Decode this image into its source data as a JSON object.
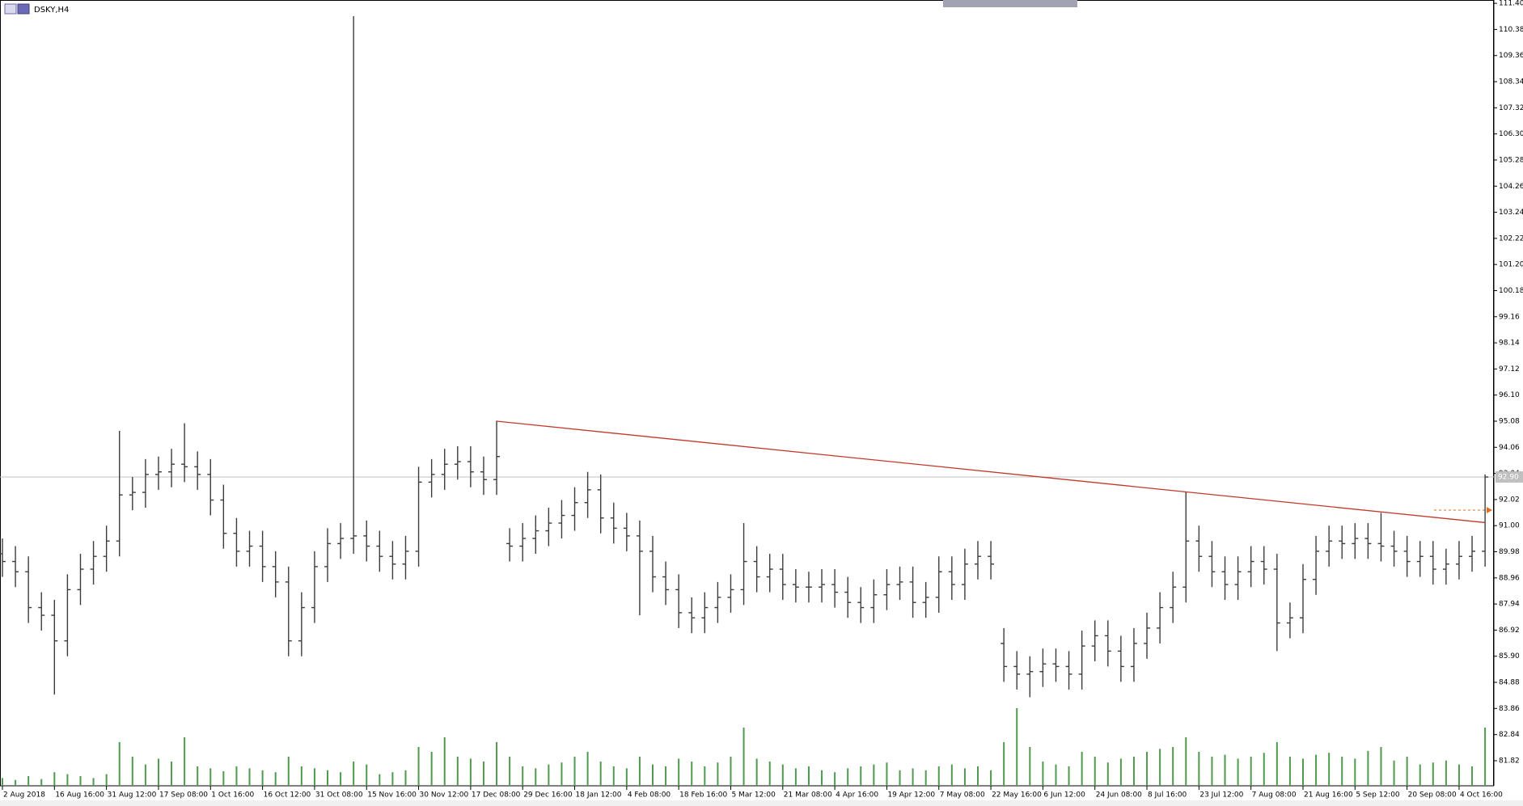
{
  "chart_data": {
    "type": "ohlc",
    "title": "DSKY,H4",
    "color": "#3c3c3c",
    "categories": [
      "2 Aug 2018",
      null,
      null,
      null,
      "16 Aug 16:00",
      null,
      null,
      null,
      "31 Aug 12:00",
      null,
      null,
      null,
      "17 Sep 08:00",
      null,
      null,
      null,
      "1 Oct 16:00",
      null,
      null,
      null,
      "16 Oct 12:00",
      null,
      null,
      null,
      "31 Oct 08:00",
      null,
      null,
      null,
      "15 Nov 16:00",
      null,
      null,
      null,
      "30 Nov 12:00",
      null,
      null,
      null,
      "17 Dec 08:00",
      null,
      null,
      null,
      "29 Dec 16:00",
      null,
      null,
      null,
      "18 Jan 12:00",
      null,
      null,
      null,
      "4 Feb 08:00",
      null,
      null,
      null,
      "18 Feb 16:00",
      null,
      null,
      null,
      "5 Mar 12:00",
      null,
      null,
      null,
      "21 Mar 08:00",
      null,
      null,
      null,
      "4 Apr 16:00",
      null,
      null,
      null,
      "19 Apr 12:00",
      null,
      null,
      null,
      "7 May 08:00",
      null,
      null,
      null,
      "22 May 16:00",
      null,
      null,
      null,
      "6 Jun 12:00",
      null,
      null,
      null,
      "24 Jun 08:00",
      null,
      null,
      null,
      "8 Jul 16:00",
      null,
      null,
      null,
      "23 Jul 12:00",
      null,
      null,
      null,
      "7 Aug 08:00",
      null,
      null,
      null,
      "21 Aug 16:00",
      null,
      null,
      null,
      "5 Sep 12:00",
      null,
      null,
      null,
      "20 Sep 08:00",
      null,
      null,
      null,
      "4 Oct 16:00",
      null,
      null
    ],
    "open": [
      89.9,
      89.6,
      89.2,
      87.8,
      87.5,
      86.5,
      88.5,
      89.3,
      89.8,
      90.4,
      92.2,
      92.3,
      93.0,
      93.1,
      93.4,
      93.3,
      93.0,
      92.0,
      90.7,
      90.0,
      90.2,
      89.4,
      88.8,
      86.5,
      87.8,
      89.4,
      90.3,
      90.5,
      90.6,
      90.2,
      89.8,
      89.5,
      90.0,
      92.7,
      93.0,
      93.4,
      93.5,
      93.1,
      92.8,
      90.3,
      90.2,
      90.5,
      90.8,
      91.1,
      91.4,
      91.9,
      92.4,
      91.3,
      90.9,
      90.6,
      90.0,
      89.0,
      88.5,
      87.6,
      87.4,
      87.8,
      88.2,
      88.5,
      89.6,
      89.0,
      89.3,
      88.7,
      88.6,
      88.6,
      88.7,
      88.4,
      88.0,
      87.8,
      88.3,
      88.7,
      88.8,
      88.0,
      88.2,
      89.2,
      88.7,
      89.5,
      89.8,
      86.4,
      85.5,
      85.2,
      85.3,
      85.6,
      85.5,
      85.2,
      86.3,
      86.7,
      86.1,
      85.5,
      86.4,
      87.0,
      87.8,
      88.6,
      90.4,
      89.8,
      89.2,
      88.7,
      89.2,
      89.6,
      89.3,
      87.2,
      87.4,
      88.9,
      90.0,
      90.4,
      90.3,
      90.5,
      90.3,
      90.2,
      90.0,
      89.6,
      89.8,
      89.3,
      89.5,
      89.8,
      90.0
    ],
    "high": [
      90.5,
      90.2,
      89.8,
      88.4,
      88.1,
      89.1,
      89.9,
      90.4,
      91.0,
      94.7,
      92.9,
      93.6,
      93.7,
      94.0,
      95.0,
      93.9,
      93.6,
      92.6,
      91.3,
      90.8,
      90.8,
      90.0,
      89.4,
      88.4,
      90.0,
      90.9,
      91.1,
      110.9,
      91.2,
      90.8,
      90.4,
      90.6,
      93.3,
      93.6,
      94.0,
      94.1,
      94.1,
      93.7,
      95.1,
      90.9,
      91.1,
      91.4,
      91.7,
      92.0,
      92.5,
      93.1,
      93.0,
      91.9,
      91.5,
      91.2,
      90.6,
      89.6,
      89.1,
      88.2,
      88.4,
      88.8,
      89.1,
      91.1,
      90.2,
      89.9,
      89.9,
      89.3,
      89.2,
      89.3,
      89.3,
      89.0,
      88.6,
      88.9,
      89.3,
      89.4,
      89.4,
      88.8,
      89.8,
      89.8,
      90.1,
      90.4,
      90.4,
      87.0,
      86.1,
      85.9,
      86.2,
      86.2,
      86.1,
      86.9,
      87.3,
      87.3,
      86.7,
      87.0,
      87.6,
      88.4,
      89.2,
      92.3,
      91.0,
      90.4,
      89.8,
      89.8,
      90.2,
      90.2,
      89.9,
      88.0,
      89.5,
      90.6,
      91.0,
      91.0,
      91.1,
      91.1,
      91.5,
      90.8,
      90.6,
      90.4,
      90.4,
      90.1,
      90.4,
      90.6,
      93.0
    ],
    "low": [
      89.0,
      88.6,
      87.2,
      86.9,
      84.4,
      85.9,
      87.9,
      88.7,
      89.2,
      89.8,
      91.6,
      91.7,
      92.4,
      92.5,
      92.7,
      92.4,
      91.4,
      90.1,
      89.4,
      89.4,
      88.8,
      88.2,
      85.9,
      85.9,
      87.2,
      88.8,
      89.7,
      89.9,
      89.6,
      89.2,
      88.9,
      88.9,
      89.4,
      92.1,
      92.4,
      92.8,
      92.5,
      92.2,
      92.2,
      89.6,
      89.6,
      89.9,
      90.2,
      90.5,
      90.8,
      91.3,
      90.7,
      90.3,
      90.0,
      87.5,
      88.4,
      87.9,
      87.0,
      86.8,
      86.8,
      87.2,
      87.6,
      87.9,
      88.4,
      88.4,
      88.1,
      88.0,
      88.0,
      88.0,
      87.8,
      87.4,
      87.2,
      87.2,
      87.7,
      88.1,
      87.4,
      87.4,
      87.6,
      88.1,
      88.1,
      88.9,
      88.9,
      84.9,
      84.6,
      84.3,
      84.7,
      84.9,
      84.6,
      84.6,
      85.7,
      85.5,
      84.9,
      84.9,
      85.8,
      86.4,
      87.2,
      88.0,
      89.2,
      88.6,
      88.1,
      88.1,
      88.6,
      88.7,
      86.1,
      86.6,
      86.8,
      88.3,
      89.4,
      89.7,
      89.7,
      89.7,
      89.6,
      89.4,
      89.0,
      89.0,
      88.7,
      88.7,
      88.9,
      89.2,
      89.4
    ],
    "close": [
      89.6,
      89.2,
      87.8,
      87.5,
      86.5,
      88.5,
      89.3,
      89.8,
      90.4,
      92.2,
      92.3,
      93.0,
      93.1,
      93.4,
      93.3,
      93.0,
      92.0,
      90.7,
      90.0,
      90.2,
      89.4,
      88.8,
      86.5,
      87.8,
      89.4,
      90.3,
      90.5,
      90.6,
      90.2,
      89.8,
      89.5,
      90.0,
      92.7,
      93.0,
      93.4,
      93.5,
      93.1,
      92.8,
      93.7,
      90.2,
      90.5,
      90.8,
      91.1,
      91.4,
      91.9,
      92.4,
      91.3,
      90.9,
      90.6,
      90.0,
      89.0,
      88.5,
      87.6,
      87.4,
      87.8,
      88.2,
      88.5,
      89.6,
      89.0,
      89.3,
      88.7,
      88.6,
      88.6,
      88.7,
      88.4,
      88.0,
      87.8,
      88.3,
      88.7,
      88.8,
      88.0,
      88.2,
      89.2,
      88.7,
      89.5,
      89.8,
      89.5,
      85.5,
      85.2,
      85.3,
      85.6,
      85.5,
      85.2,
      86.3,
      86.7,
      86.1,
      85.5,
      86.4,
      87.0,
      87.8,
      88.6,
      90.4,
      89.8,
      89.2,
      88.7,
      89.2,
      89.6,
      89.3,
      87.2,
      87.4,
      88.9,
      90.0,
      90.4,
      90.3,
      90.5,
      90.3,
      90.2,
      90.0,
      89.6,
      89.8,
      89.3,
      89.5,
      89.8,
      90.0,
      92.9
    ],
    "volume": {
      "color": "#4f9a4f",
      "values": [
        8,
        6,
        10,
        7,
        14,
        12,
        10,
        8,
        12,
        45,
        30,
        22,
        28,
        25,
        50,
        20,
        18,
        15,
        20,
        18,
        16,
        14,
        30,
        20,
        18,
        16,
        14,
        25,
        22,
        12,
        14,
        16,
        40,
        35,
        50,
        30,
        28,
        25,
        45,
        30,
        20,
        18,
        22,
        24,
        30,
        35,
        25,
        20,
        18,
        30,
        22,
        20,
        28,
        25,
        20,
        24,
        30,
        60,
        28,
        25,
        22,
        18,
        20,
        16,
        14,
        18,
        20,
        22,
        24,
        16,
        18,
        16,
        20,
        22,
        18,
        20,
        16,
        45,
        80,
        40,
        25,
        22,
        20,
        35,
        30,
        24,
        28,
        30,
        35,
        38,
        40,
        50,
        35,
        30,
        32,
        28,
        30,
        34,
        45,
        30,
        28,
        32,
        34,
        30,
        28,
        36,
        40,
        26,
        30,
        22,
        24,
        26,
        22,
        20,
        60
      ]
    },
    "ylim": [
      80.84,
      111.53
    ],
    "yticks": [
      {
        "value": 111.4,
        "label": "111.40"
      },
      110.38,
      109.36,
      108.34,
      107.32,
      {
        "value": 106.3,
        "label": "106.30"
      },
      105.28,
      104.26,
      103.24,
      102.22,
      {
        "value": 101.2,
        "label": "101.20"
      },
      100.18,
      99.16,
      98.14,
      97.12,
      {
        "value": 96.1,
        "label": "96.10"
      },
      95.08,
      94.06,
      93.04,
      92.02,
      {
        "value": 91,
        "label": "91.00"
      },
      89.98,
      88.96,
      87.94,
      86.92,
      {
        "value": 85.9,
        "label": "85.90"
      },
      84.88,
      83.86,
      82.84,
      81.82
    ],
    "bid_line": {
      "value": 92.9,
      "label": "92.90",
      "color": "#c0c0c0"
    },
    "trendline": {
      "color": "#c0392b",
      "start_bar": 38,
      "end_bar": 114,
      "values": [
        95.08,
        91.12
      ]
    }
  }
}
